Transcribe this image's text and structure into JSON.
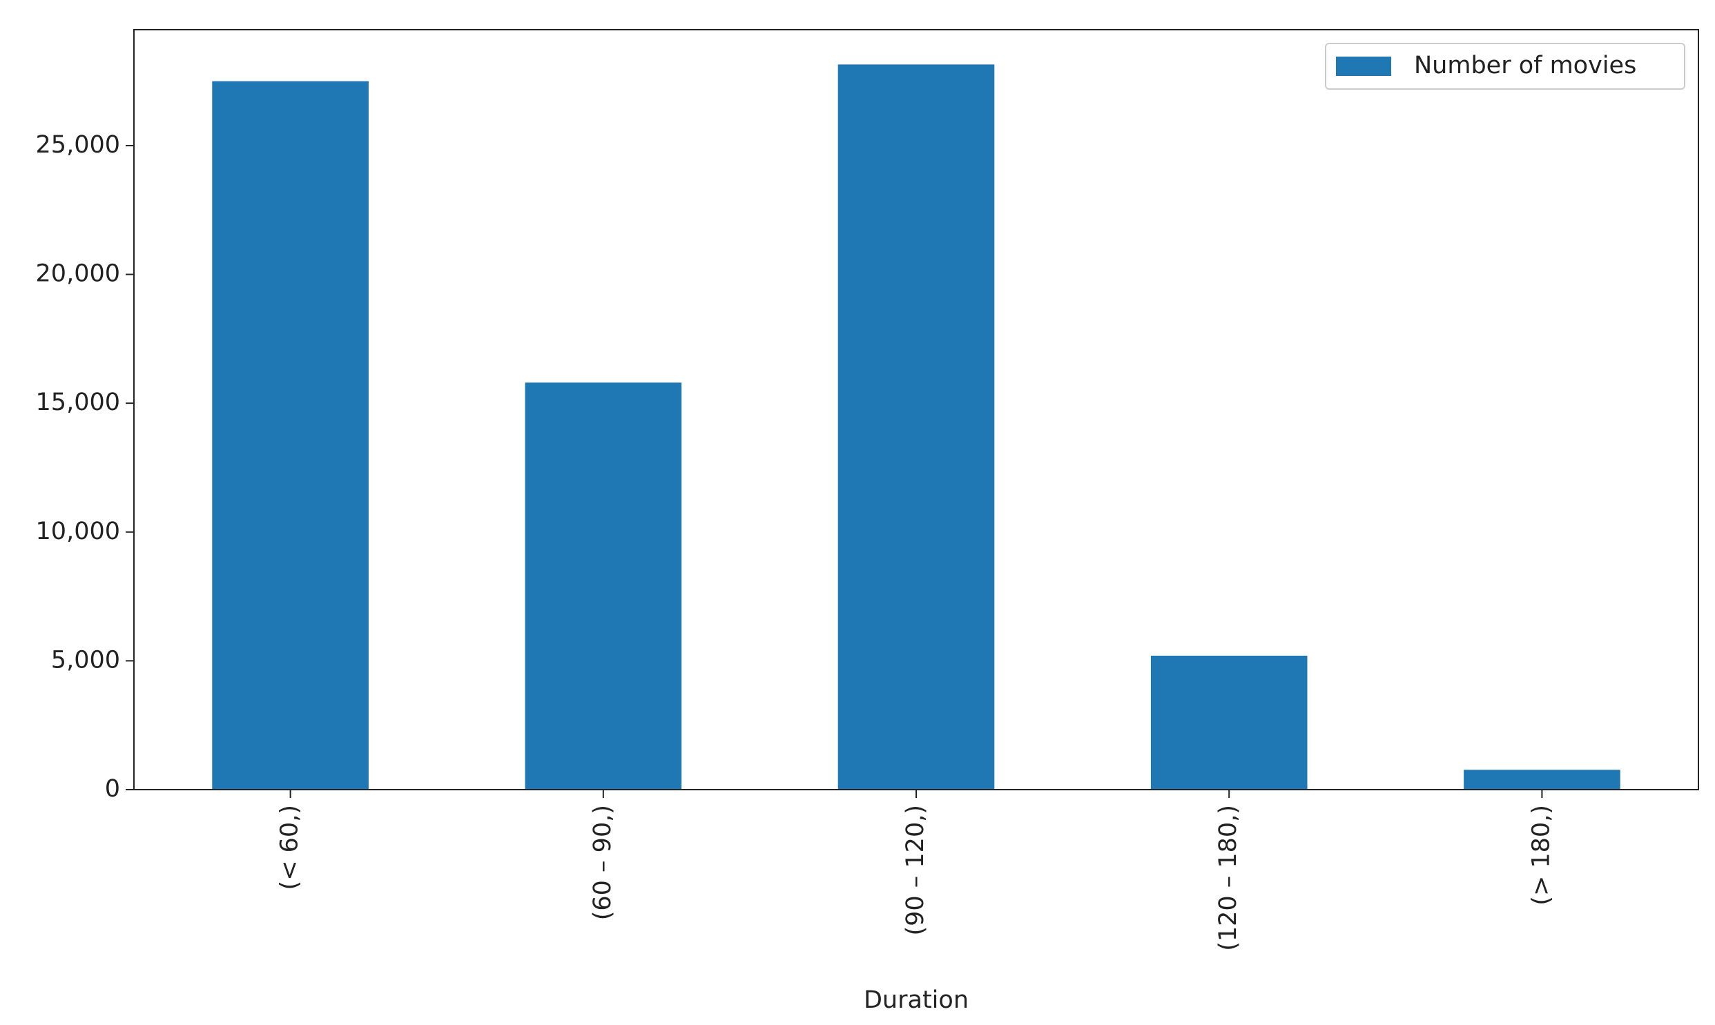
{
  "chart_data": {
    "type": "bar",
    "x_label": "Duration",
    "categories": [
      "(< 60,)",
      "(60 – 90,)",
      "(90 – 120,)",
      "(120 – 180,)",
      "(> 180,)"
    ],
    "series": [
      {
        "name": "Number of movies",
        "color": "#1f77b4",
        "values": [
          27500,
          15800,
          28150,
          5200,
          770
        ]
      }
    ],
    "ylim": [
      0,
      29500
    ],
    "yticks": [
      0,
      {
        "value": 5000,
        "label": "5,000"
      },
      {
        "value": 10000,
        "label": "10,000"
      },
      {
        "value": 15000,
        "label": "15,000"
      },
      {
        "value": 20000,
        "label": "20,000"
      },
      {
        "value": 25000,
        "label": "25,000"
      }
    ],
    "grid": false,
    "legend": "upper right"
  }
}
